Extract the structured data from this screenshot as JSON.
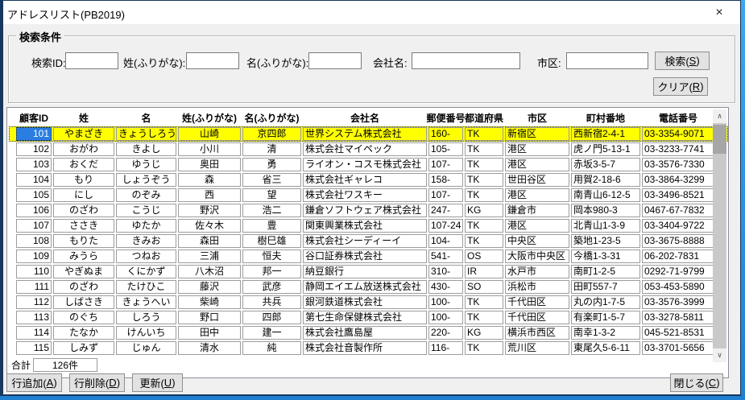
{
  "window": {
    "title": "アドレスリスト(PB2019)",
    "close_glyph": "×"
  },
  "search": {
    "group_title": "検索条件",
    "id_label": "検索ID:",
    "id_value": "",
    "sei_kana_label": "姓(ふりがな):",
    "sei_kana_value": "",
    "mei_kana_label": "名(ふりがな):",
    "mei_kana_value": "",
    "company_label": "会社名:",
    "company_value": "",
    "city_label": "市区:",
    "city_value": "",
    "search_button": {
      "pre": "検索(",
      "mnemonic": "S",
      "post": ")"
    },
    "clear_button": {
      "pre": "クリア(",
      "mnemonic": "R",
      "post": ")"
    }
  },
  "table": {
    "columns": [
      {
        "label": "顧客ID",
        "align": "right"
      },
      {
        "label": "姓",
        "align": "center"
      },
      {
        "label": "名",
        "align": "center"
      },
      {
        "label": "姓(ふりがな)",
        "align": "center"
      },
      {
        "label": "名(ふりがな)",
        "align": "center"
      },
      {
        "label": "会社名",
        "align": "left"
      },
      {
        "label": "郵便番号",
        "align": "left"
      },
      {
        "label": "都道府県",
        "align": "left"
      },
      {
        "label": "市区",
        "align": "left"
      },
      {
        "label": "町村番地",
        "align": "left"
      },
      {
        "label": "電話番号",
        "align": "left"
      }
    ],
    "selected_index": 0,
    "rows": [
      [
        "101",
        "やまざき",
        "きょうしろう",
        "山崎",
        "京四郎",
        "世界システム株式会社",
        "160-",
        "TK",
        "新宿区",
        "西新宿2-4-1",
        "03-3354-9071"
      ],
      [
        "102",
        "おがわ",
        "きよし",
        "小川",
        "清",
        "株式会社マイペック",
        "105-",
        "TK",
        "港区",
        "虎ノ門5-13-1",
        "03-3233-7741"
      ],
      [
        "103",
        "おくだ",
        "ゆうじ",
        "奥田",
        "勇",
        "ライオン・コスモ株式会社",
        "107-",
        "TK",
        "港区",
        "赤坂3-5-7",
        "03-3576-7330"
      ],
      [
        "104",
        "もり",
        "しょうぞう",
        "森",
        "省三",
        "株式会社ギャレコ",
        "158-",
        "TK",
        "世田谷区",
        "用賀2-18-6",
        "03-3864-3299"
      ],
      [
        "105",
        "にし",
        "のぞみ",
        "西",
        "望",
        "株式会社ワスキー",
        "107-",
        "TK",
        "港区",
        "南青山6-12-5",
        "03-3496-8521"
      ],
      [
        "106",
        "のざわ",
        "こうじ",
        "野沢",
        "浩二",
        "鎌倉ソフトウェア株式会社",
        "247-",
        "KG",
        "鎌倉市",
        "岡本980-3",
        "0467-67-7832"
      ],
      [
        "107",
        "ささき",
        "ゆたか",
        "佐々木",
        "豊",
        "関東興業株式会社",
        "107-24",
        "TK",
        "港区",
        "北青山1-3-9",
        "03-3404-9722"
      ],
      [
        "108",
        "もりた",
        "きみお",
        "森田",
        "樹巳雄",
        "株式会社シーディーイ",
        "104-",
        "TK",
        "中央区",
        "築地1-23-5",
        "03-3675-8888"
      ],
      [
        "109",
        "みうら",
        "つねお",
        "三浦",
        "恒夫",
        "谷口証券株式会社",
        "541-",
        "OS",
        "大阪市中央区",
        "今橋1-3-31",
        "06-202-7831"
      ],
      [
        "110",
        "やぎぬま",
        "くにかず",
        "八木沼",
        "邦一",
        "納豆銀行",
        "310-",
        "IR",
        "水戸市",
        "南町1-2-5",
        "0292-71-9799"
      ],
      [
        "111",
        "のざわ",
        "たけひこ",
        "藤沢",
        "武彦",
        "静岡エイエム放送株式会社",
        "430-",
        "SO",
        "浜松市",
        "田町557-7",
        "053-453-5890"
      ],
      [
        "112",
        "しばさき",
        "きょうへい",
        "柴崎",
        "共兵",
        "銀河鉄道株式会社",
        "100-",
        "TK",
        "千代田区",
        "丸の内1-7-5",
        "03-3576-3999"
      ],
      [
        "113",
        "のぐち",
        "しろう",
        "野口",
        "四郎",
        "第七生命保健株式会社",
        "100-",
        "TK",
        "千代田区",
        "有楽町1-5-7",
        "03-3278-5811"
      ],
      [
        "114",
        "たなか",
        "けんいち",
        "田中",
        "建一",
        "株式会社鷹島屋",
        "220-",
        "KG",
        "横浜市西区",
        "南幸1-3-2",
        "045-521-8531"
      ],
      [
        "115",
        "しみず",
        "じゅん",
        "清水",
        "純",
        "株式会社音製作所",
        "116-",
        "TK",
        "荒川区",
        "東尾久5-6-11",
        "03-3701-5656"
      ]
    ],
    "scrollbar": {
      "up_glyph": "∧",
      "down_glyph": "∨"
    },
    "footer": {
      "total_label": "合計",
      "total_value": "126件"
    }
  },
  "actions": {
    "add_row_button": {
      "pre": "行追加(",
      "mnemonic": "A",
      "post": ")"
    },
    "delete_row_button": {
      "pre": "行削除(",
      "mnemonic": "D",
      "post": ")"
    },
    "update_button": {
      "pre": "更新(",
      "mnemonic": "U",
      "post": ")"
    },
    "close_button": {
      "pre": "閉じる(",
      "mnemonic": "C",
      "post": ")"
    }
  },
  "colors": {
    "selected_row_bg": "#ffff00",
    "selected_cell_bg": "#2a7de1",
    "window_frame": "#17375e",
    "desktop_bg": "#2b8fd8",
    "client_bg": "#f0f0f0"
  }
}
